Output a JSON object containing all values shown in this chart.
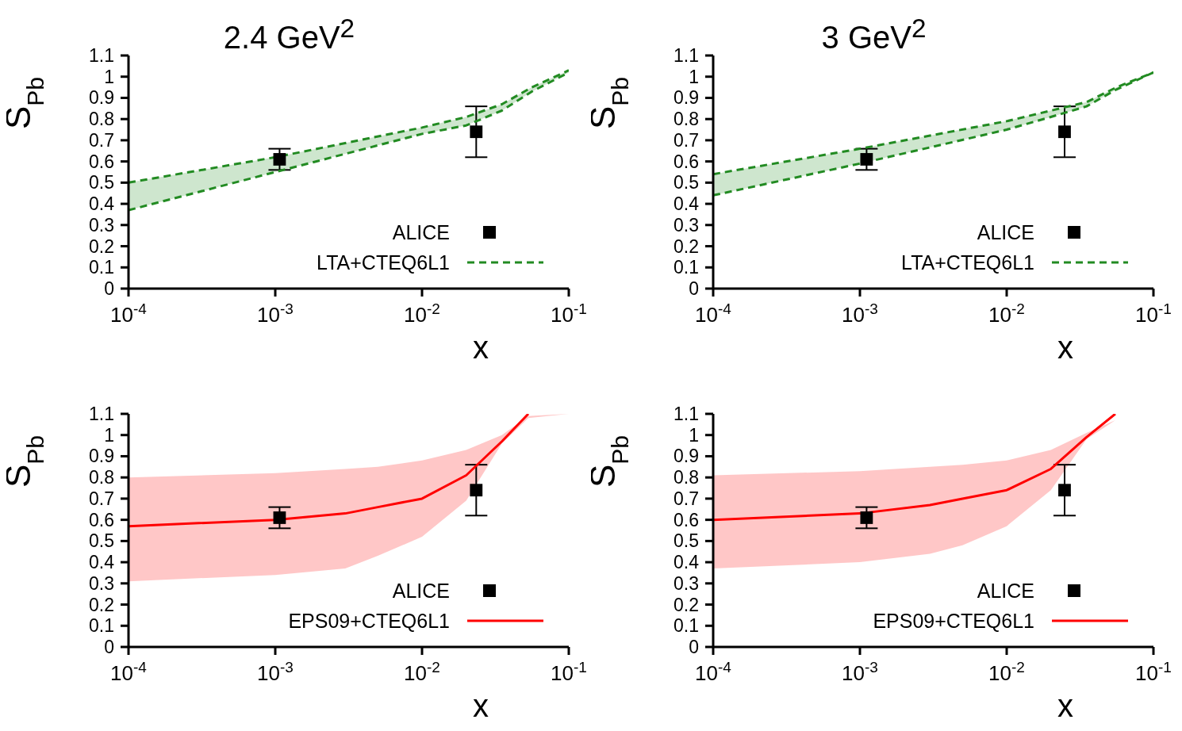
{
  "chart_data": [
    {
      "type": "line",
      "title": "2.4 GeV$^{2}$",
      "xlabel": "x",
      "ylabel": "S$_{Pb}$",
      "log": "x",
      "xlim": [
        0.0001,
        0.1
      ],
      "xticks": [
        {
          "value": 0.0001,
          "label": "10$^{-4}$"
        },
        {
          "value": 0.001,
          "label": "10$^{-3}$"
        },
        {
          "value": 0.01,
          "label": "10$^{-2}$"
        },
        {
          "value": 0.1,
          "label": "10$^{-1}$"
        }
      ],
      "ylim": [
        0,
        1.1
      ],
      "yticks": [
        0,
        0.1,
        0.2,
        0.3,
        0.4,
        0.5,
        0.6,
        0.7,
        0.8,
        0.9,
        1,
        1.1
      ],
      "grid": false,
      "legend": "bottom right",
      "marker": "none",
      "series": [
        {
          "name": "ALICE",
          "type": "scatter",
          "marker": "square",
          "color": "#000000",
          "x": [
            0.00107,
            0.0234
          ],
          "values": [
            0.61,
            0.74
          ],
          "errors": [
            [
              0.56,
              0.66
            ],
            [
              0.62,
              0.86
            ]
          ]
        },
        {
          "name": "LTA+CTEQ6L1",
          "line_style": "dashed",
          "color": "#228b22",
          "x": [
            0.0001,
            0.001,
            0.01,
            0.02,
            0.035,
            0.056,
            0.1
          ],
          "values": [
            0.5,
            0.62,
            0.76,
            0.81,
            0.87,
            0.95,
            1.03
          ],
          "lower": [
            0.37,
            0.55,
            0.73,
            0.77,
            0.84,
            0.93,
            1.02
          ],
          "upper": [
            0.5,
            0.62,
            0.76,
            0.81,
            0.87,
            0.95,
            1.03
          ]
        },
        {
          "line_style": "dashed",
          "color": "#228b22",
          "x": [
            0.0001,
            0.001,
            0.01,
            0.02,
            0.035,
            0.056,
            0.1
          ],
          "values": [
            0.37,
            0.55,
            0.73,
            0.77,
            0.84,
            0.93,
            1.02
          ]
        }
      ]
    },
    {
      "type": "line",
      "title": "3 GeV$^{2}$",
      "xlabel": "x",
      "ylabel": "S$_{Pb}$",
      "log": "x",
      "xlim": [
        0.0001,
        0.1
      ],
      "xticks": [
        {
          "value": 0.0001,
          "label": "10$^{-4}$"
        },
        {
          "value": 0.001,
          "label": "10$^{-3}$"
        },
        {
          "value": 0.01,
          "label": "10$^{-2}$"
        },
        {
          "value": 0.1,
          "label": "10$^{-1}$"
        }
      ],
      "ylim": [
        0,
        1.1
      ],
      "yticks": [
        0,
        0.1,
        0.2,
        0.3,
        0.4,
        0.5,
        0.6,
        0.7,
        0.8,
        0.9,
        1,
        1.1
      ],
      "grid": false,
      "legend": "bottom right",
      "marker": "none",
      "series": [
        {
          "name": "ALICE",
          "type": "scatter",
          "marker": "square",
          "color": "#000000",
          "x": [
            0.00111,
            0.0248
          ],
          "values": [
            0.61,
            0.74
          ],
          "errors": [
            [
              0.56,
              0.66
            ],
            [
              0.62,
              0.86
            ]
          ]
        },
        {
          "name": "LTA+CTEQ6L1",
          "line_style": "dashed",
          "color": "#228b22",
          "x": [
            0.0001,
            0.001,
            0.01,
            0.02,
            0.035,
            0.056,
            0.1
          ],
          "values": [
            0.54,
            0.66,
            0.79,
            0.84,
            0.88,
            0.95,
            1.02
          ],
          "lower": [
            0.44,
            0.59,
            0.75,
            0.81,
            0.86,
            0.94,
            1.02
          ],
          "upper": [
            0.54,
            0.66,
            0.79,
            0.84,
            0.88,
            0.95,
            1.02
          ]
        },
        {
          "line_style": "dashed",
          "color": "#228b22",
          "x": [
            0.0001,
            0.001,
            0.01,
            0.02,
            0.035,
            0.056,
            0.1
          ],
          "values": [
            0.44,
            0.59,
            0.75,
            0.81,
            0.86,
            0.94,
            1.02
          ]
        }
      ]
    },
    {
      "type": "line",
      "xlabel": "x",
      "ylabel": "S$_{Pb}$",
      "log": "x",
      "xlim": [
        0.0001,
        0.1
      ],
      "xticks": [
        {
          "value": 0.0001,
          "label": "10$^{-4}$"
        },
        {
          "value": 0.001,
          "label": "10$^{-3}$"
        },
        {
          "value": 0.01,
          "label": "10$^{-2}$"
        },
        {
          "value": 0.1,
          "label": "10$^{-1}$"
        }
      ],
      "ylim": [
        0,
        1.1
      ],
      "yticks": [
        0,
        0.1,
        0.2,
        0.3,
        0.4,
        0.5,
        0.6,
        0.7,
        0.8,
        0.9,
        1,
        1.1
      ],
      "grid": false,
      "legend": "bottom right",
      "marker": "none",
      "series": [
        {
          "name": "ALICE",
          "type": "scatter",
          "marker": "square",
          "color": "#000000",
          "x": [
            0.00107,
            0.0234
          ],
          "values": [
            0.61,
            0.74
          ],
          "errors": [
            [
              0.56,
              0.66
            ],
            [
              0.62,
              0.86
            ]
          ]
        },
        {
          "name": "EPS09+CTEQ6L1",
          "line_style": "solid",
          "color": "#ff0000",
          "x": [
            0.0001,
            0.001,
            0.003,
            0.005,
            0.01,
            0.02,
            0.035,
            0.053,
            0.1
          ],
          "values": [
            0.57,
            0.6,
            0.63,
            0.66,
            0.7,
            0.81,
            0.97,
            1.1,
            null
          ],
          "lower": [
            0.31,
            0.34,
            0.37,
            0.43,
            0.52,
            0.69,
            0.96,
            1.08,
            1.1
          ],
          "upper": [
            0.8,
            0.82,
            0.84,
            0.85,
            0.88,
            0.93,
            1.0,
            1.09,
            1.1
          ]
        }
      ]
    },
    {
      "type": "line",
      "xlabel": "x",
      "ylabel": "S$_{Pb}$",
      "log": "x",
      "xlim": [
        0.0001,
        0.1
      ],
      "xticks": [
        {
          "value": 0.0001,
          "label": "10$^{-4}$"
        },
        {
          "value": 0.001,
          "label": "10$^{-3}$"
        },
        {
          "value": 0.01,
          "label": "10$^{-2}$"
        },
        {
          "value": 0.1,
          "label": "10$^{-1}$"
        }
      ],
      "ylim": [
        0,
        1.1
      ],
      "yticks": [
        0,
        0.1,
        0.2,
        0.3,
        0.4,
        0.5,
        0.6,
        0.7,
        0.8,
        0.9,
        1,
        1.1
      ],
      "grid": false,
      "legend": "bottom right",
      "marker": "none",
      "series": [
        {
          "name": "ALICE",
          "type": "scatter",
          "marker": "square",
          "color": "#000000",
          "x": [
            0.00111,
            0.0248
          ],
          "values": [
            0.61,
            0.74
          ],
          "errors": [
            [
              0.56,
              0.66
            ],
            [
              0.62,
              0.86
            ]
          ]
        },
        {
          "name": "EPS09+CTEQ6L1",
          "line_style": "solid",
          "color": "#ff0000",
          "x": [
            0.0001,
            0.001,
            0.003,
            0.005,
            0.01,
            0.02,
            0.035,
            0.055,
            0.1
          ],
          "values": [
            0.6,
            0.63,
            0.67,
            0.7,
            0.74,
            0.84,
            0.99,
            1.1,
            null
          ],
          "lower": [
            0.37,
            0.4,
            0.44,
            0.48,
            0.57,
            0.74,
            0.98,
            1.07,
            1.1
          ],
          "upper": [
            0.81,
            0.83,
            0.85,
            0.86,
            0.88,
            0.93,
            1.01,
            1.07,
            1.1
          ]
        }
      ]
    }
  ]
}
